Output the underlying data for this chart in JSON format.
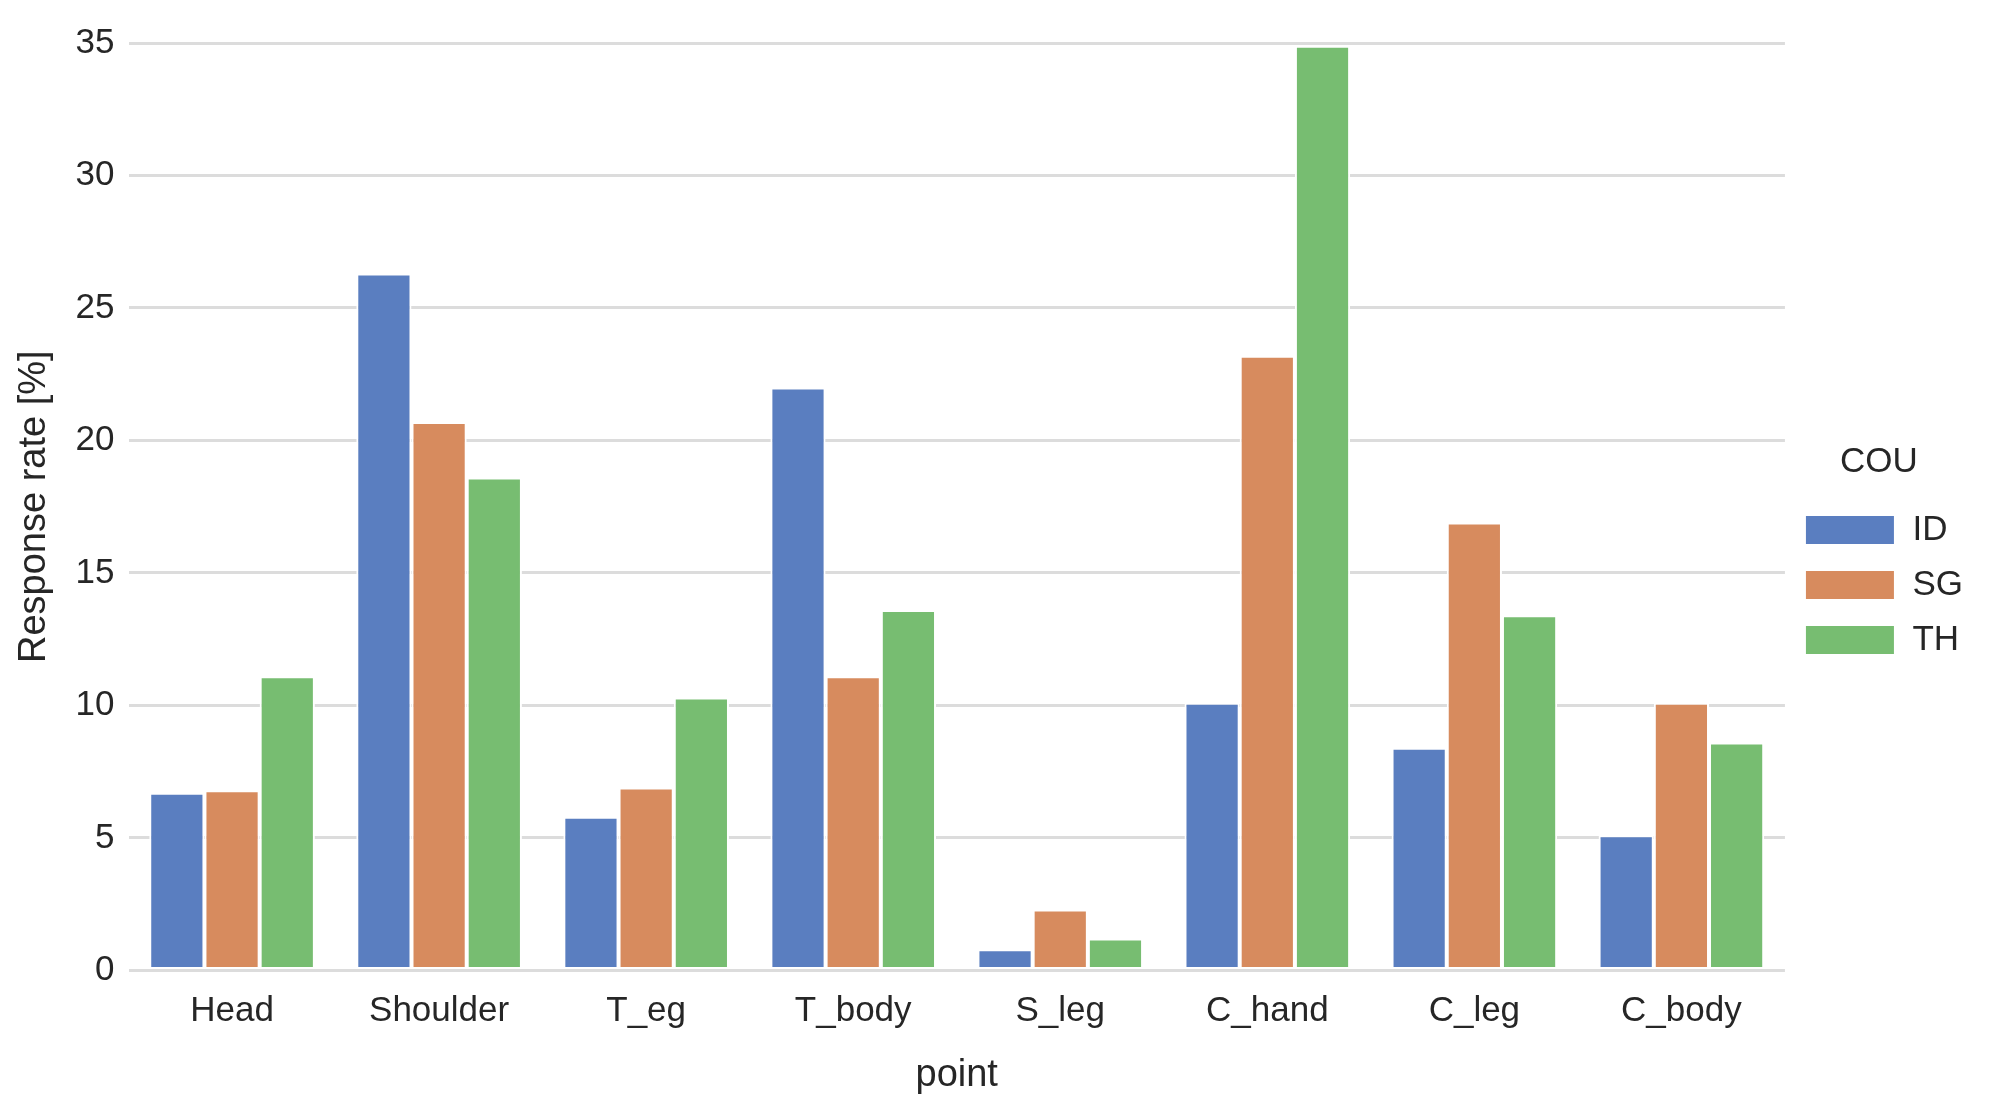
{
  "chart_data": {
    "type": "bar",
    "xlabel": "point",
    "ylabel": "Response rate [%]",
    "legend_title": "COU",
    "categories": [
      "Head",
      "Shoulder",
      "T_eg",
      "T_body",
      "S_leg",
      "C_hand",
      "C_leg",
      "C_body"
    ],
    "series": [
      {
        "name": "ID",
        "color": "#5a7ec0",
        "values": [
          6.7,
          26.3,
          5.8,
          22.0,
          0.8,
          10.1,
          8.4,
          5.1
        ]
      },
      {
        "name": "SG",
        "color": "#d78b5e",
        "values": [
          6.8,
          20.7,
          6.9,
          11.1,
          2.3,
          23.2,
          16.9,
          10.1
        ]
      },
      {
        "name": "TH",
        "color": "#77bd71",
        "values": [
          11.1,
          18.6,
          10.3,
          13.6,
          1.2,
          34.9,
          13.4,
          8.6
        ]
      }
    ],
    "ylim": [
      0,
      35
    ],
    "yticks": [
      0,
      5,
      10,
      15,
      20,
      25,
      30,
      35
    ],
    "grid": "y",
    "legend": "right"
  }
}
